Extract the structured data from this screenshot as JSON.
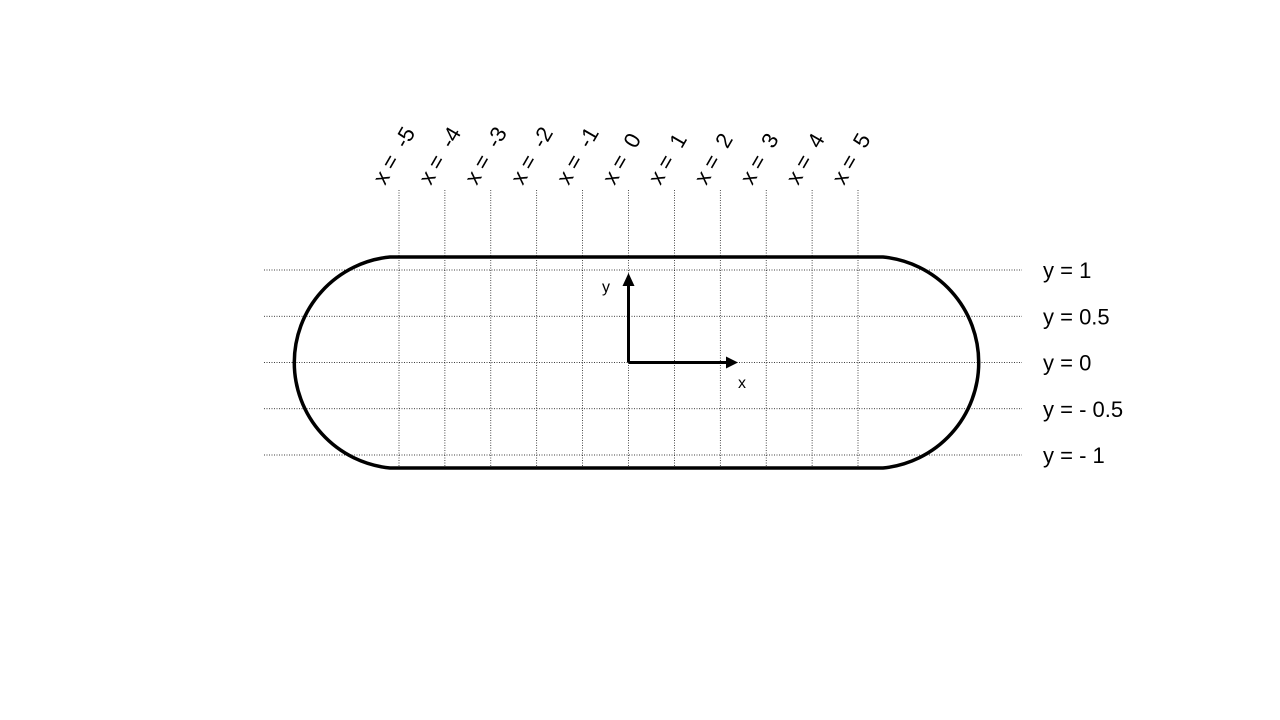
{
  "diagram": {
    "x_labels": [
      {
        "value": -5,
        "text": "x =  -5"
      },
      {
        "value": -4,
        "text": "x =  -4"
      },
      {
        "value": -3,
        "text": "x =  -3"
      },
      {
        "value": -2,
        "text": "x =  -2"
      },
      {
        "value": -1,
        "text": "x =  -1"
      },
      {
        "value": 0,
        "text": "x =  0"
      },
      {
        "value": 1,
        "text": "x =  1"
      },
      {
        "value": 2,
        "text": "x =  2"
      },
      {
        "value": 3,
        "text": "x =  3"
      },
      {
        "value": 4,
        "text": "x =  4"
      },
      {
        "value": 5,
        "text": "x =  5"
      }
    ],
    "y_labels": [
      {
        "value": 1,
        "text": "y = 1"
      },
      {
        "value": 0.5,
        "text": "y = 0.5"
      },
      {
        "value": 0,
        "text": "y = 0"
      },
      {
        "value": -0.5,
        "text": "y = - 0.5"
      },
      {
        "value": -1,
        "text": "y = - 1"
      }
    ],
    "axes": {
      "x_name": "x",
      "y_name": "y"
    },
    "colors": {
      "line": "#000000",
      "background": "#ffffff"
    }
  }
}
